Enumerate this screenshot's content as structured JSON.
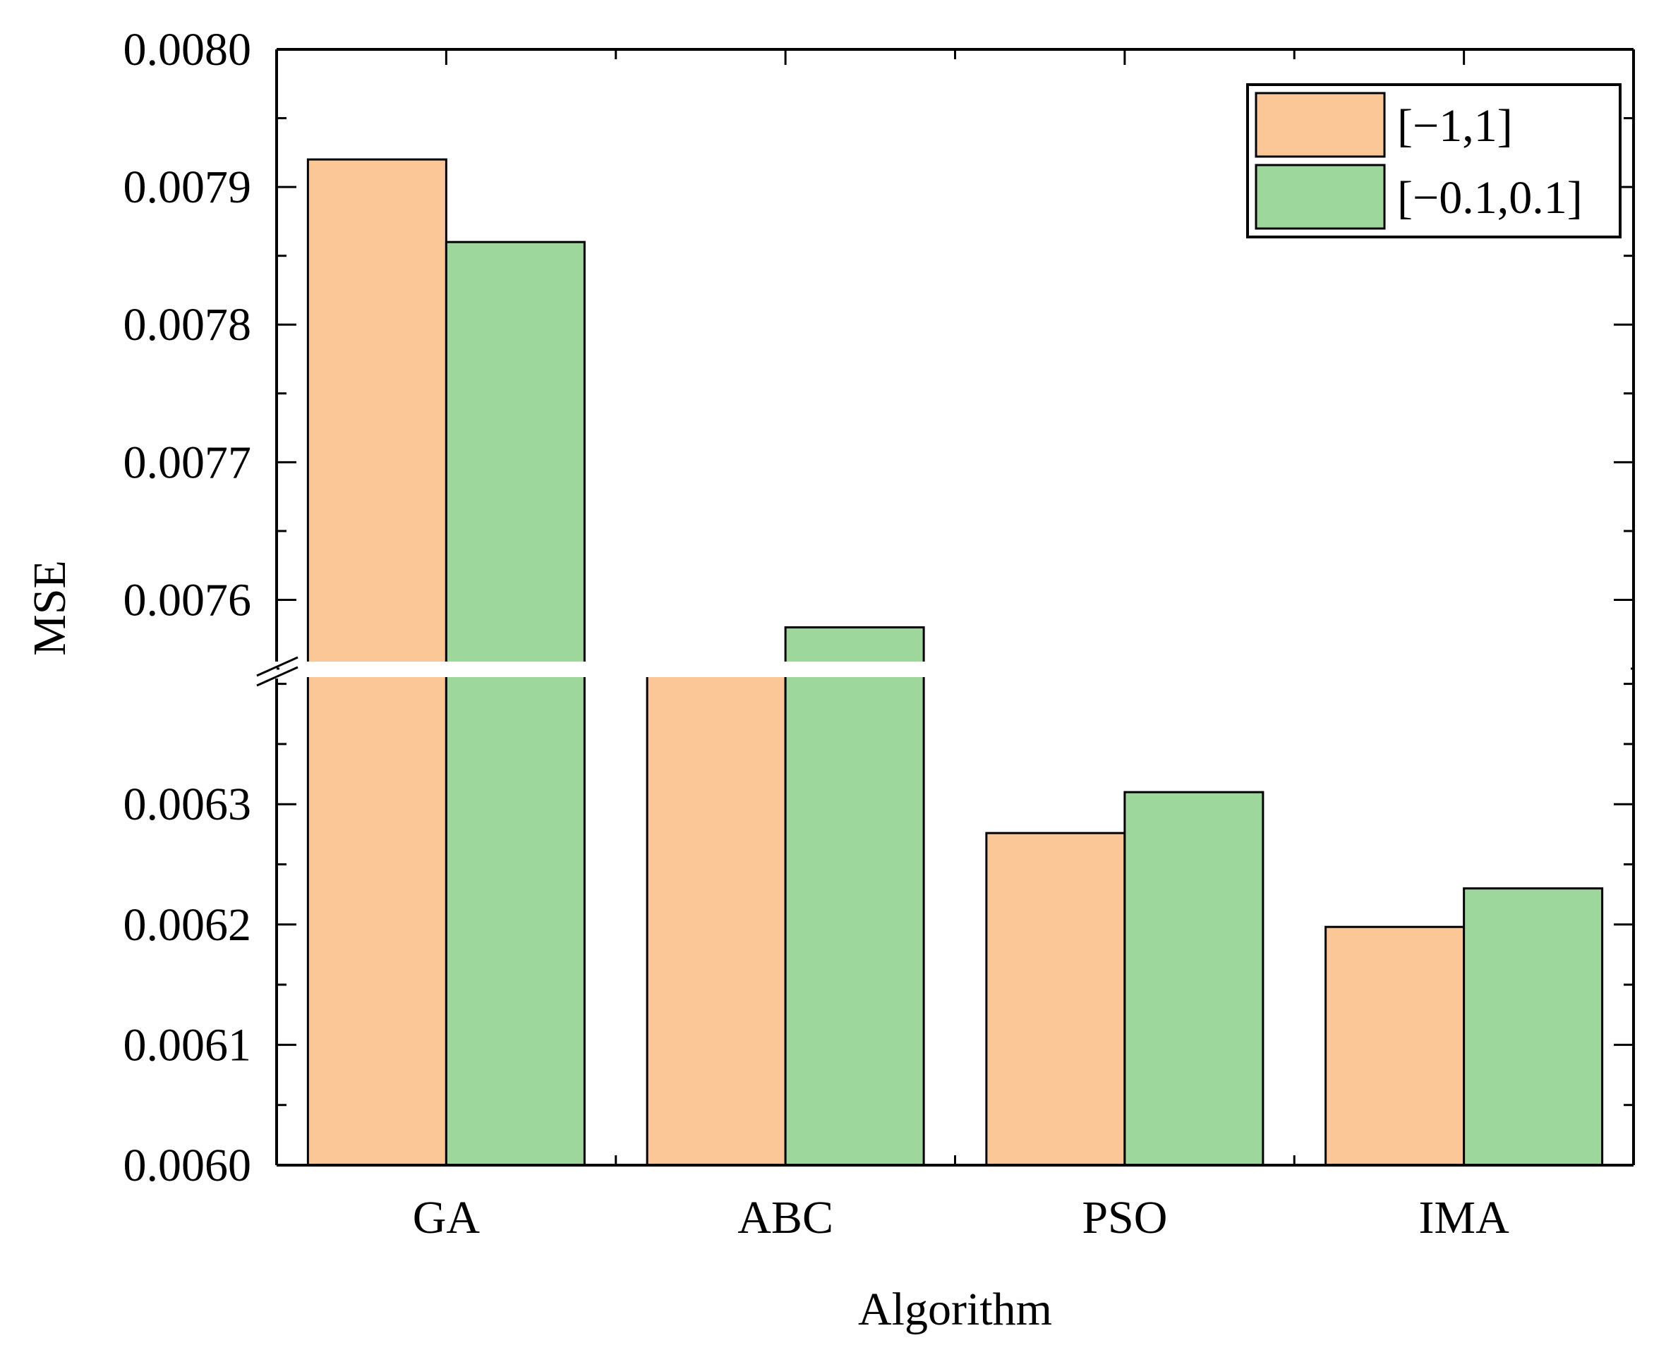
{
  "chart_data": {
    "type": "bar",
    "title": "",
    "xlabel": "Algorithm",
    "ylabel": "MSE",
    "categories": [
      "GA",
      "ABC",
      "PSO",
      "IMA"
    ],
    "series": [
      {
        "name": "[−1,1]",
        "color": "#FBC797",
        "values": [
          0.00792,
          0.007553,
          0.006276,
          0.006198
        ]
      },
      {
        "name": "[−0.1,0.1]",
        "color": "#9DD79B",
        "values": [
          0.00786,
          0.00758,
          0.00631,
          0.00623
        ]
      }
    ],
    "y_axis_break": {
      "lower_segment": [
        0.006,
        0.006415
      ],
      "upper_segment": [
        0.00755,
        0.008
      ]
    },
    "yticks_lower": [
      {
        "value": 0.006,
        "label": "0.0060"
      },
      {
        "value": 0.0061,
        "label": "0.0061"
      },
      {
        "value": 0.0062,
        "label": "0.0062"
      },
      {
        "value": 0.0063,
        "label": "0.0063"
      }
    ],
    "yticks_upper": [
      {
        "value": 0.0076,
        "label": "0.0076"
      },
      {
        "value": 0.0077,
        "label": "0.0077"
      },
      {
        "value": 0.0078,
        "label": "0.0078"
      },
      {
        "value": 0.0079,
        "label": "0.0079"
      },
      {
        "value": 0.008,
        "label": "0.0080"
      }
    ],
    "legend_position": "top-right",
    "grid": false
  }
}
